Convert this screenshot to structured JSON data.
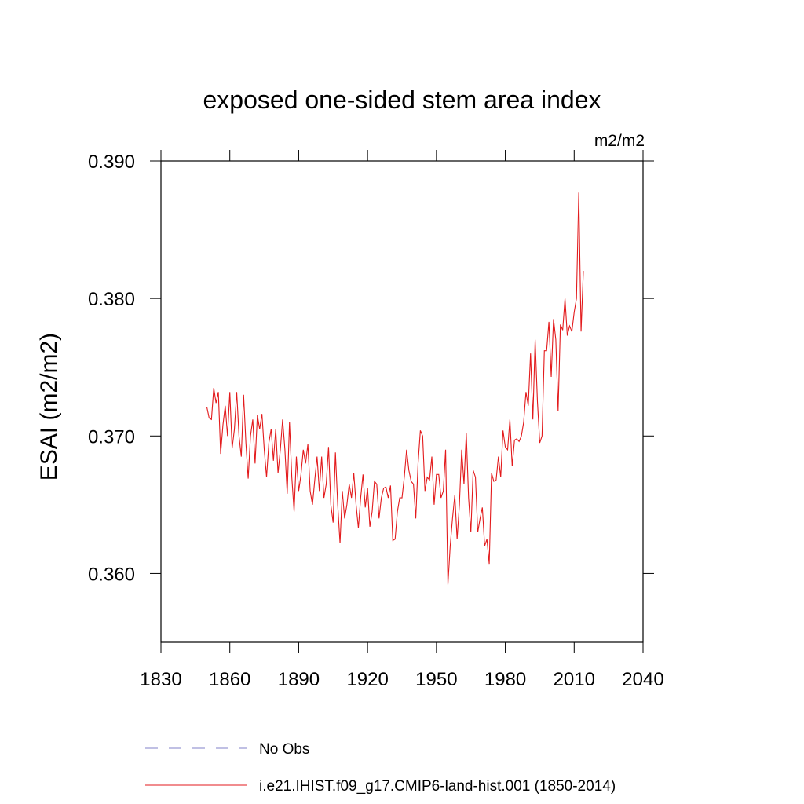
{
  "chart_data": {
    "type": "line",
    "title": "exposed one-sided stem area index",
    "units": "m2/m2",
    "ylabel": "ESAI  (m2/m2)",
    "xlim": [
      1830,
      2040
    ],
    "xticks": [
      1830,
      1860,
      1890,
      1920,
      1950,
      1980,
      2010,
      2040
    ],
    "ylim": [
      0.355,
      0.39
    ],
    "yticks": [
      {
        "value": 0.36,
        "label": "0.360"
      },
      {
        "value": 0.37,
        "label": "0.370"
      },
      {
        "value": 0.38,
        "label": "0.380"
      },
      {
        "value": 0.39,
        "label": "0.390"
      }
    ],
    "x": [
      1850,
      1851,
      1852,
      1853,
      1854,
      1855,
      1856,
      1857,
      1858,
      1859,
      1860,
      1861,
      1862,
      1863,
      1864,
      1865,
      1866,
      1867,
      1868,
      1869,
      1870,
      1871,
      1872,
      1873,
      1874,
      1875,
      1876,
      1877,
      1878,
      1879,
      1880,
      1881,
      1882,
      1883,
      1884,
      1885,
      1886,
      1887,
      1888,
      1889,
      1890,
      1891,
      1892,
      1893,
      1894,
      1895,
      1896,
      1897,
      1898,
      1899,
      1900,
      1901,
      1902,
      1903,
      1904,
      1905,
      1906,
      1907,
      1908,
      1909,
      1910,
      1911,
      1912,
      1913,
      1914,
      1915,
      1916,
      1917,
      1918,
      1919,
      1920,
      1921,
      1922,
      1923,
      1924,
      1925,
      1926,
      1927,
      1928,
      1929,
      1930,
      1931,
      1932,
      1933,
      1934,
      1935,
      1936,
      1937,
      1938,
      1939,
      1940,
      1941,
      1942,
      1943,
      1944,
      1945,
      1946,
      1947,
      1948,
      1949,
      1950,
      1951,
      1952,
      1953,
      1954,
      1955,
      1956,
      1957,
      1958,
      1959,
      1960,
      1961,
      1962,
      1963,
      1964,
      1965,
      1966,
      1967,
      1968,
      1969,
      1970,
      1971,
      1972,
      1973,
      1974,
      1975,
      1976,
      1977,
      1978,
      1979,
      1980,
      1981,
      1982,
      1983,
      1984,
      1985,
      1986,
      1987,
      1988,
      1989,
      1990,
      1991,
      1992,
      1993,
      1994,
      1995,
      1996,
      1997,
      1998,
      1999,
      2000,
      2001,
      2002,
      2003,
      2004,
      2005,
      2006,
      2007,
      2008,
      2009,
      2010,
      2011,
      2012,
      2013,
      2014
    ],
    "series": [
      {
        "name": "i.e21.IHIST.f09_g17.CMIP6-land-hist.001 (1850-2014)",
        "color": "#e31a1c",
        "values": [
          0.3721,
          0.3713,
          0.3712,
          0.3735,
          0.3724,
          0.3732,
          0.3687,
          0.3708,
          0.3722,
          0.37,
          0.3732,
          0.3691,
          0.3705,
          0.3732,
          0.37,
          0.3685,
          0.373,
          0.3695,
          0.3669,
          0.37,
          0.3712,
          0.368,
          0.3715,
          0.3705,
          0.3716,
          0.369,
          0.367,
          0.3695,
          0.3705,
          0.3682,
          0.3705,
          0.3673,
          0.369,
          0.3712,
          0.369,
          0.3658,
          0.371,
          0.367,
          0.3645,
          0.3685,
          0.366,
          0.3672,
          0.369,
          0.368,
          0.3694,
          0.366,
          0.365,
          0.3668,
          0.3685,
          0.366,
          0.3685,
          0.3655,
          0.3665,
          0.3692,
          0.365,
          0.3637,
          0.3688,
          0.365,
          0.3622,
          0.366,
          0.364,
          0.365,
          0.3665,
          0.3655,
          0.3673,
          0.365,
          0.3633,
          0.3655,
          0.3672,
          0.3648,
          0.3662,
          0.3634,
          0.3645,
          0.3667,
          0.3665,
          0.364,
          0.3655,
          0.3662,
          0.3663,
          0.3655,
          0.3664,
          0.3624,
          0.3625,
          0.3645,
          0.3655,
          0.3655,
          0.367,
          0.369,
          0.3675,
          0.3667,
          0.3665,
          0.364,
          0.368,
          0.3704,
          0.37,
          0.366,
          0.367,
          0.3668,
          0.3685,
          0.365,
          0.3672,
          0.3672,
          0.3655,
          0.366,
          0.369,
          0.3592,
          0.362,
          0.364,
          0.3657,
          0.3625,
          0.365,
          0.369,
          0.3665,
          0.3702,
          0.3655,
          0.363,
          0.3675,
          0.367,
          0.363,
          0.364,
          0.3648,
          0.362,
          0.3625,
          0.3607,
          0.3673,
          0.3667,
          0.3668,
          0.3685,
          0.367,
          0.3704,
          0.3692,
          0.369,
          0.3712,
          0.3678,
          0.3697,
          0.3698,
          0.3696,
          0.37,
          0.371,
          0.3732,
          0.3722,
          0.376,
          0.3712,
          0.377,
          0.3725,
          0.3695,
          0.37,
          0.3762,
          0.3762,
          0.3783,
          0.3743,
          0.3785,
          0.377,
          0.3718,
          0.3781,
          0.3777,
          0.38,
          0.3773,
          0.378,
          0.3776,
          0.379,
          0.38,
          0.3877,
          0.3776,
          0.382
        ]
      }
    ],
    "legend": [
      {
        "name": "No Obs",
        "color": "#8080c8",
        "dashed": true
      }
    ]
  }
}
